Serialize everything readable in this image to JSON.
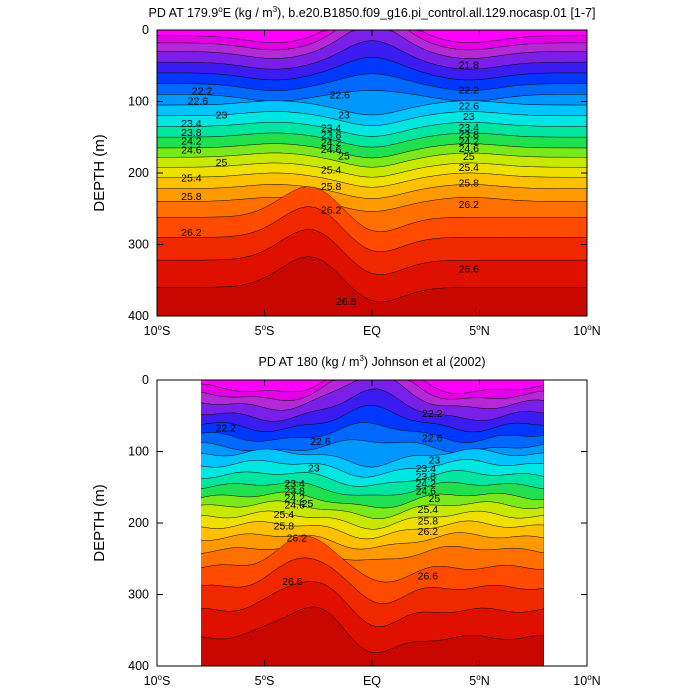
{
  "chart_data": [
    {
      "type": "contour",
      "title_prefix": "PD AT 179.9",
      "title_sup1": "o",
      "title_mid": "E (kg / m",
      "title_sup2": "3",
      "title_suffix": "), b.e20.B1850.f09_g16.pi_control.all.129.nocasp.01 [1-7]",
      "ylabel": "DEPTH (m)",
      "xlabel": "",
      "xlim": [
        -10,
        10
      ],
      "ylim": [
        0,
        400
      ],
      "y_reversed": true,
      "data_extent": [
        -10,
        10
      ],
      "x_ticks": [
        {
          "v": -10,
          "label": "10",
          "sup": "o",
          "suffix": "S"
        },
        {
          "v": -5,
          "label": "5",
          "sup": "o",
          "suffix": "S"
        },
        {
          "v": 0,
          "label": "EQ",
          "sup": "",
          "suffix": ""
        },
        {
          "v": 5,
          "label": "5",
          "sup": "o",
          "suffix": "N"
        },
        {
          "v": 10,
          "label": "10",
          "sup": "o",
          "suffix": "N"
        }
      ],
      "y_ticks": [
        "0",
        "100",
        "200",
        "300",
        "400"
      ],
      "contour_labels": [
        {
          "x": 4.5,
          "y": 50,
          "text": "21.8"
        },
        {
          "x": -7.9,
          "y": 86,
          "text": "22.2"
        },
        {
          "x": 4.5,
          "y": 85,
          "text": "22.2"
        },
        {
          "x": -8.1,
          "y": 100,
          "text": "22.6"
        },
        {
          "x": -1.5,
          "y": 92,
          "text": "22.6"
        },
        {
          "x": 4.5,
          "y": 107,
          "text": "22.6"
        },
        {
          "x": -7,
          "y": 120,
          "text": "23"
        },
        {
          "x": -1.3,
          "y": 120,
          "text": "23"
        },
        {
          "x": 4.5,
          "y": 122,
          "text": "23"
        },
        {
          "x": -8.4,
          "y": 132,
          "text": "23.4"
        },
        {
          "x": -1.9,
          "y": 138,
          "text": "23.4"
        },
        {
          "x": 4.5,
          "y": 137,
          "text": "23.4"
        },
        {
          "x": -8.4,
          "y": 144,
          "text": "23.8"
        },
        {
          "x": -1.9,
          "y": 148,
          "text": "23.8"
        },
        {
          "x": 4.5,
          "y": 147,
          "text": "23.8"
        },
        {
          "x": -8.4,
          "y": 156,
          "text": "24.2"
        },
        {
          "x": -1.9,
          "y": 158,
          "text": "24.2"
        },
        {
          "x": 4.5,
          "y": 157,
          "text": "24.2"
        },
        {
          "x": -8.4,
          "y": 169,
          "text": "24.6"
        },
        {
          "x": -1.9,
          "y": 168,
          "text": "24.6"
        },
        {
          "x": 4.5,
          "y": 167,
          "text": "24.6"
        },
        {
          "x": -7,
          "y": 186,
          "text": "25"
        },
        {
          "x": -1.3,
          "y": 177,
          "text": "25"
        },
        {
          "x": 4.5,
          "y": 178,
          "text": "25"
        },
        {
          "x": -8.4,
          "y": 208,
          "text": "25.4"
        },
        {
          "x": -1.9,
          "y": 197,
          "text": "25.4"
        },
        {
          "x": 4.5,
          "y": 193,
          "text": "25.4"
        },
        {
          "x": -8.4,
          "y": 234,
          "text": "25.8"
        },
        {
          "x": -1.9,
          "y": 220,
          "text": "25.8"
        },
        {
          "x": 4.5,
          "y": 215,
          "text": "25.8"
        },
        {
          "x": -1.9,
          "y": 253,
          "text": "26.2"
        },
        {
          "x": 4.5,
          "y": 245,
          "text": "26.2"
        },
        {
          "x": -8.4,
          "y": 284,
          "text": "26.2"
        },
        {
          "x": 4.5,
          "y": 335,
          "text": "26.6"
        },
        {
          "x": -1.2,
          "y": 381,
          "text": "26.8"
        }
      ]
    },
    {
      "type": "contour",
      "title_prefix": "PD AT 180 (kg / m",
      "title_sup1": "3",
      "title_mid": ") Johnson et al (2002)",
      "title_sup2": "",
      "title_suffix": "",
      "ylabel": "DEPTH (m)",
      "xlabel": "",
      "xlim": [
        -10,
        10
      ],
      "ylim": [
        0,
        400
      ],
      "y_reversed": true,
      "data_extent": [
        -8,
        8
      ],
      "x_ticks": [
        {
          "v": -10,
          "label": "10",
          "sup": "o",
          "suffix": "S"
        },
        {
          "v": -5,
          "label": "5",
          "sup": "o",
          "suffix": "S"
        },
        {
          "v": 0,
          "label": "EQ",
          "sup": "",
          "suffix": ""
        },
        {
          "v": 5,
          "label": "5",
          "sup": "o",
          "suffix": "N"
        },
        {
          "v": 10,
          "label": "10",
          "sup": "o",
          "suffix": "N"
        }
      ],
      "y_ticks": [
        "0",
        "100",
        "200",
        "300",
        "400"
      ],
      "contour_labels": [
        {
          "x": 2.8,
          "y": 48,
          "text": "22.2"
        },
        {
          "x": -6.8,
          "y": 68,
          "text": "22.2"
        },
        {
          "x": 2.8,
          "y": 82,
          "text": "22.6"
        },
        {
          "x": -2.4,
          "y": 87,
          "text": "22.6"
        },
        {
          "x": -2.7,
          "y": 124,
          "text": "23"
        },
        {
          "x": 2.9,
          "y": 113,
          "text": "23"
        },
        {
          "x": 2.5,
          "y": 125,
          "text": "23.4"
        },
        {
          "x": -3.6,
          "y": 146,
          "text": "23.4"
        },
        {
          "x": 2.5,
          "y": 136,
          "text": "23.8"
        },
        {
          "x": -3.6,
          "y": 156,
          "text": "23.8"
        },
        {
          "x": 2.5,
          "y": 146,
          "text": "24.2"
        },
        {
          "x": -3.6,
          "y": 166,
          "text": "24.2"
        },
        {
          "x": 2.5,
          "y": 156,
          "text": "24.6"
        },
        {
          "x": -3.6,
          "y": 176,
          "text": "24.6"
        },
        {
          "x": -3,
          "y": 174,
          "text": "25"
        },
        {
          "x": 2.9,
          "y": 167,
          "text": "25"
        },
        {
          "x": -4.1,
          "y": 189,
          "text": "25.4"
        },
        {
          "x": 2.6,
          "y": 182,
          "text": "25.4"
        },
        {
          "x": -4.1,
          "y": 205,
          "text": "25.8"
        },
        {
          "x": 2.6,
          "y": 198,
          "text": "25.8"
        },
        {
          "x": -3.5,
          "y": 222,
          "text": "26.2"
        },
        {
          "x": 2.6,
          "y": 213,
          "text": "26.2"
        },
        {
          "x": -3.7,
          "y": 283,
          "text": "26.6"
        },
        {
          "x": 2.6,
          "y": 275,
          "text": "26.6"
        }
      ]
    }
  ]
}
